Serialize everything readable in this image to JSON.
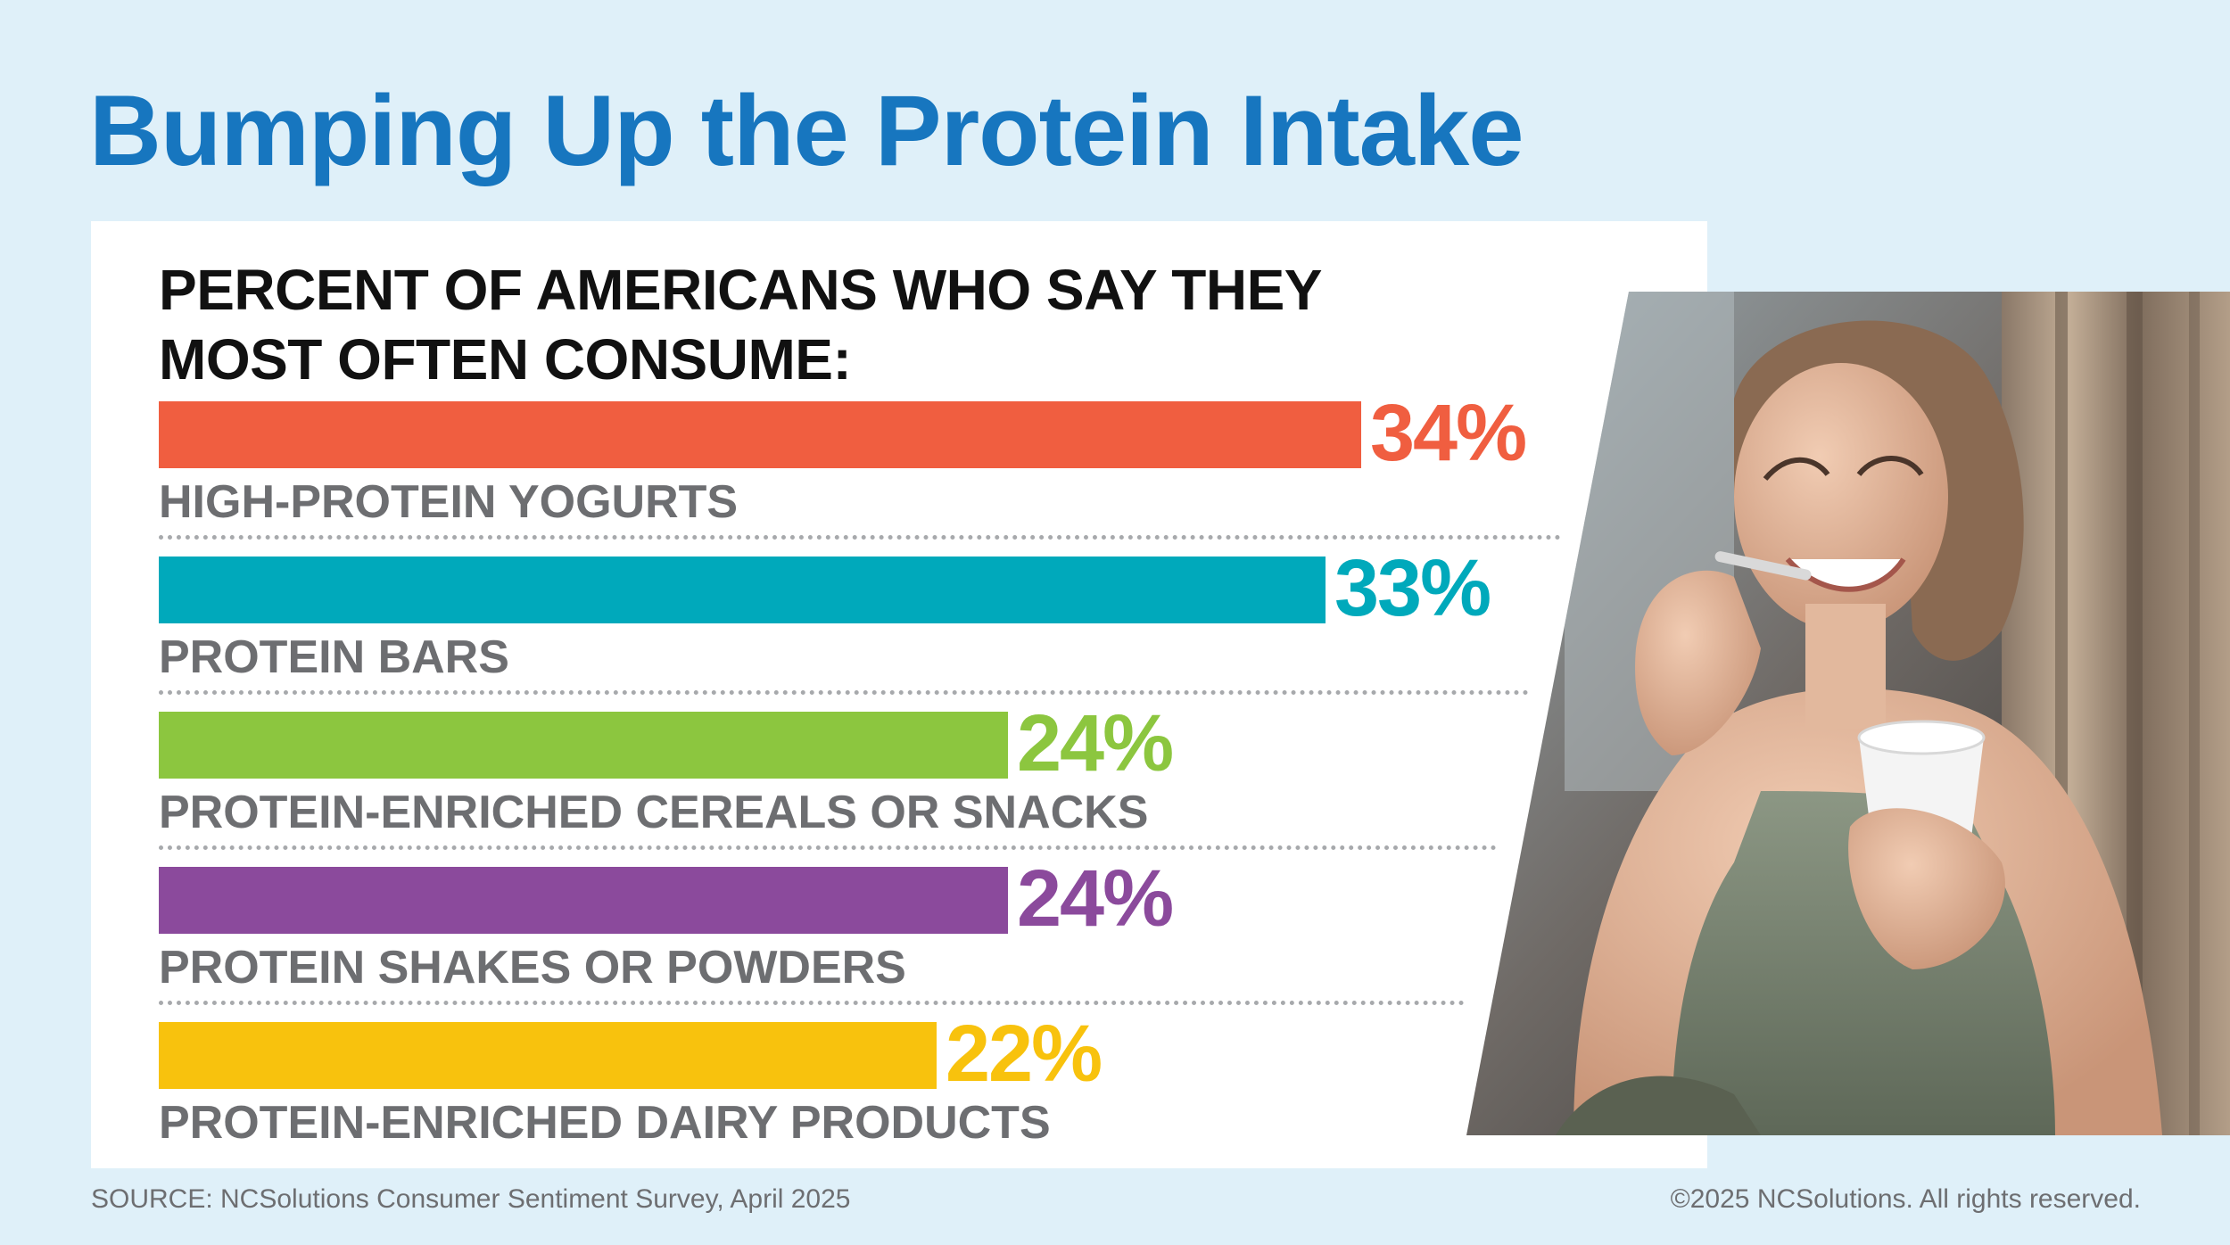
{
  "header": {
    "title": "Bumping Up the Protein Intake"
  },
  "chart_data": {
    "type": "bar",
    "orientation": "horizontal",
    "title_lines": [
      "PERCENT OF AMERICANS WHO SAY THEY",
      "MOST OFTEN CONSUME:"
    ],
    "categories": [
      "HIGH-PROTEIN YOGURTS",
      "PROTEIN BARS",
      "PROTEIN-ENRICHED CEREALS OR SNACKS",
      "PROTEIN SHAKES OR POWDERS",
      "PROTEIN-ENRICHED DAIRY PRODUCTS"
    ],
    "values": [
      34,
      33,
      24,
      24,
      22
    ],
    "value_labels": [
      "34%",
      "33%",
      "24%",
      "24%",
      "22%"
    ],
    "colors": [
      "#f05e40",
      "#00a9bb",
      "#8cc63f",
      "#8b4a9c",
      "#f8c20d"
    ],
    "unit": "%",
    "grid": false,
    "legend": "none"
  },
  "footer": {
    "source": "SOURCE: NCSolutions Consumer Sentiment Survey, April 2025",
    "copyright": "©2025 NCSolutions. All rights reserved."
  },
  "photo": {
    "icon": "woman-eating-yogurt-photo"
  }
}
